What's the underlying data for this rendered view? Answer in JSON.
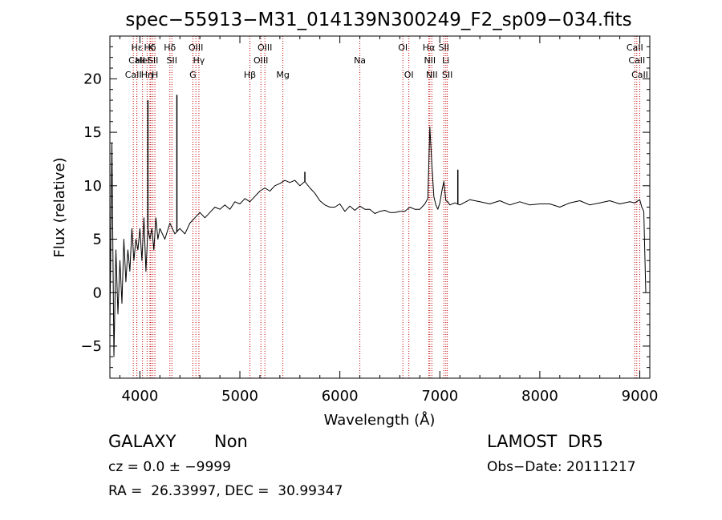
{
  "chart_data": {
    "type": "line",
    "title": "spec−55913−M31_014139N300249_F2_sp09−034.fits",
    "xlabel": "Wavelength (Å)",
    "ylabel": "Flux (relative)",
    "xlim": [
      3700,
      9100
    ],
    "ylim": [
      -8,
      24
    ],
    "xticks": [
      4000,
      5000,
      6000,
      7000,
      8000,
      9000
    ],
    "yticks": [
      -5,
      0,
      5,
      10,
      15,
      20
    ],
    "grid": false,
    "legend": "none",
    "series": [
      {
        "x": [
          3700,
          3720,
          3740,
          3760,
          3780,
          3800,
          3820,
          3840,
          3860,
          3880,
          3900,
          3920,
          3940,
          3960,
          3980,
          4000,
          4020,
          4040,
          4060,
          4080,
          4100,
          4120,
          4140,
          4160,
          4180,
          4200,
          4250,
          4300,
          4350,
          4400,
          4450,
          4500,
          4550,
          4600,
          4650,
          4700,
          4750,
          4800,
          4850,
          4900,
          4950,
          5000,
          5050,
          5100,
          5150,
          5200,
          5250,
          5300,
          5350,
          5400,
          5450,
          5500,
          5550,
          5600,
          5650,
          5700,
          5750,
          5800,
          5850,
          5900,
          5950,
          6000,
          6050,
          6100,
          6150,
          6200,
          6250,
          6300,
          6350,
          6400,
          6450,
          6500,
          6550,
          6600,
          6650,
          6700,
          6750,
          6800,
          6850,
          6880,
          6900,
          6920,
          6940,
          6960,
          6980,
          7000,
          7020,
          7040,
          7060,
          7080,
          7100,
          7150,
          7200,
          7300,
          7400,
          7500,
          7600,
          7700,
          7800,
          7900,
          8000,
          8100,
          8200,
          8300,
          8400,
          8500,
          8600,
          8700,
          8800,
          8900,
          8950,
          9000,
          9020,
          9040,
          9060
        ],
        "y": [
          -3,
          14,
          -6,
          4,
          -2,
          3,
          -1,
          5,
          1,
          4,
          2,
          6,
          3,
          5,
          4,
          6,
          3,
          7,
          2,
          6,
          5,
          6,
          4,
          7,
          5,
          6,
          5,
          6.5,
          5.5,
          6,
          5.5,
          6.5,
          7,
          7.5,
          7,
          7.5,
          8,
          7.8,
          8.2,
          7.8,
          8.5,
          8.3,
          8.8,
          8.5,
          9,
          9.5,
          9.8,
          9.5,
          10,
          10.2,
          10.5,
          10.3,
          10.5,
          10,
          10.4,
          9.8,
          9.3,
          8.6,
          8.2,
          8.0,
          8.0,
          8.3,
          7.6,
          8.1,
          7.7,
          8.1,
          7.8,
          7.8,
          7.4,
          7.6,
          7.7,
          7.5,
          7.5,
          7.6,
          7.6,
          8.0,
          7.8,
          7.8,
          8.3,
          8.8,
          15.5,
          12,
          9,
          8.2,
          7.8,
          8.4,
          9.5,
          10.4,
          8.6,
          8.5,
          8.2,
          8.4,
          8.2,
          8.7,
          8.5,
          8.3,
          8.6,
          8.2,
          8.5,
          8.2,
          8.3,
          8.3,
          8.0,
          8.4,
          8.6,
          8.2,
          8.4,
          8.6,
          8.3,
          8.5,
          8.4,
          8.7,
          8.0,
          7.6,
          0
        ]
      }
    ],
    "spikes": [
      {
        "x": 4080,
        "y": 18
      },
      {
        "x": 4370,
        "y": 18.5
      },
      {
        "x": 5650,
        "y": 11.3
      },
      {
        "x": 7180,
        "y": 11.5
      }
    ],
    "line_markers": [
      {
        "x": 3934,
        "label": "CaII",
        "row": 3
      },
      {
        "x": 3969,
        "label": "CaII",
        "row": 2
      },
      {
        "x": 3970,
        "label": "Hε",
        "row": 1
      },
      {
        "x": 4026,
        "label": "HeI",
        "row": 2
      },
      {
        "x": 4072,
        "label": "Hη",
        "row": 3
      },
      {
        "x": 4101,
        "label": "Hδ",
        "row": 1
      },
      {
        "x": 4110,
        "label": "K",
        "row": 1
      },
      {
        "x": 4130,
        "label": "SII",
        "row": 2
      },
      {
        "x": 4150,
        "label": "H",
        "row": 3
      },
      {
        "x": 4300,
        "label": "Hδ",
        "row": 1
      },
      {
        "x": 4320,
        "label": "SII",
        "row": 2
      },
      {
        "x": 4530,
        "label": "G",
        "row": 3
      },
      {
        "x": 4560,
        "label": "OIII",
        "row": 1
      },
      {
        "x": 4590,
        "label": "Hγ",
        "row": 2
      },
      {
        "x": 5100,
        "label": "Hβ",
        "row": 3
      },
      {
        "x": 5210,
        "label": "OIII",
        "row": 2
      },
      {
        "x": 5250,
        "label": "OIII",
        "row": 1
      },
      {
        "x": 5430,
        "label": "Mg",
        "row": 3
      },
      {
        "x": 6200,
        "label": "Na",
        "row": 2
      },
      {
        "x": 6630,
        "label": "OI",
        "row": 1
      },
      {
        "x": 6690,
        "label": "OI",
        "row": 3
      },
      {
        "x": 6890,
        "label": "Hα",
        "row": 1
      },
      {
        "x": 6900,
        "label": "NII",
        "row": 2
      },
      {
        "x": 6920,
        "label": "NII",
        "row": 3
      },
      {
        "x": 7040,
        "label": "SII",
        "row": 1
      },
      {
        "x": 7060,
        "label": "Li",
        "row": 2
      },
      {
        "x": 7075,
        "label": "SII",
        "row": 3
      },
      {
        "x": 8950,
        "label": "CaII",
        "row": 1
      },
      {
        "x": 8970,
        "label": "CaII",
        "row": 2
      },
      {
        "x": 9000,
        "label": "CaII",
        "row": 3
      }
    ]
  },
  "info": {
    "class_label": "GALAXY",
    "subclass_label": "Non",
    "survey": "LAMOST  DR5",
    "cz": "cz = 0.0 ± −9999",
    "obs_date": "Obs−Date: 20111217",
    "radec": "RA =  26.33997, DEC =  30.99347"
  }
}
